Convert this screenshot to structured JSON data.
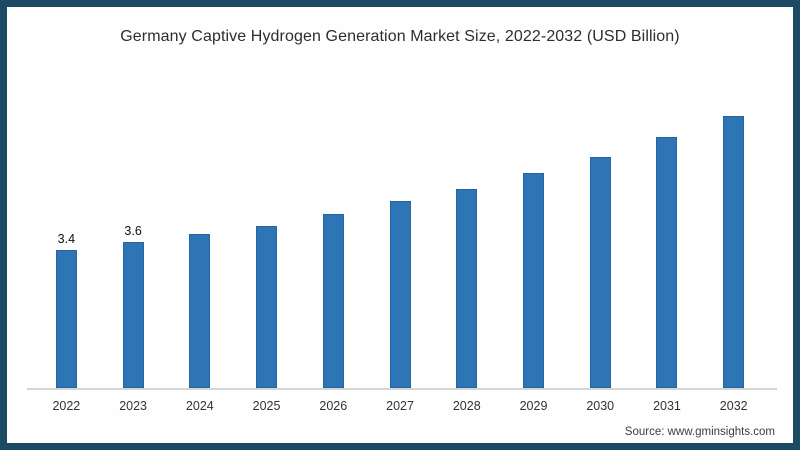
{
  "footer": {
    "source": "Source: www.gminsights.com"
  },
  "colors": {
    "bar": "#2e75b6",
    "frame_border": "#1b4a62",
    "axis_line": "#d6d6d6",
    "title_text": "#2d2d2d"
  },
  "chart_data": {
    "type": "bar",
    "title": "Germany Captive Hydrogen Generation Market Size, 2022-2032 (USD Billion)",
    "categories": [
      "2022",
      "2023",
      "2024",
      "2025",
      "2026",
      "2027",
      "2028",
      "2029",
      "2030",
      "2031",
      "2032"
    ],
    "values": [
      3.4,
      3.6,
      3.8,
      4.0,
      4.3,
      4.6,
      4.9,
      5.3,
      5.7,
      6.2,
      6.7
    ],
    "data_labels": [
      "3.4",
      "3.6",
      "",
      "",
      "",
      "",
      "",
      "",
      "",
      "",
      ""
    ],
    "xlabel": "",
    "ylabel": "",
    "ylim": [
      0,
      7.5
    ],
    "grid": false,
    "legend": false,
    "bar_color": "#2e75b6"
  }
}
